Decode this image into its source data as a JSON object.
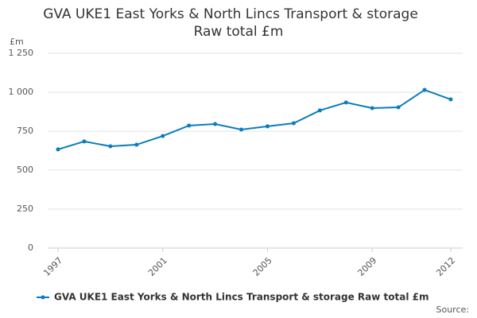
{
  "chart_data": {
    "type": "line",
    "title": [
      "GVA UKE1 East Yorks & North Lincs Transport & storage",
      "Raw total £m"
    ],
    "y_unit": "£m",
    "x": [
      1997,
      1998,
      1999,
      2000,
      2001,
      2002,
      2003,
      2004,
      2005,
      2006,
      2007,
      2008,
      2009,
      2010,
      2011,
      2012
    ],
    "series": [
      {
        "name": "GVA UKE1 East Yorks & North Lincs Transport & storage Raw total £m",
        "color": "#0b7dbc",
        "values": [
          633,
          684,
          653,
          663,
          719,
          786,
          796,
          760,
          781,
          801,
          883,
          934,
          898,
          903,
          1015,
          954
        ]
      }
    ],
    "xlim": [
      1997,
      2012
    ],
    "xticks": [
      1997,
      2001,
      2005,
      2009,
      2012
    ],
    "ylim": [
      0,
      1250
    ],
    "yticks": [
      0,
      250,
      500,
      750,
      {
        "value": 1000,
        "label": "1 000"
      },
      {
        "value": 1250,
        "label": "1 250"
      }
    ],
    "grid": true,
    "source": "Source:"
  }
}
